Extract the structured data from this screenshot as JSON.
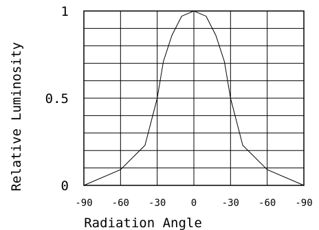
{
  "chart_data": {
    "type": "line",
    "xlabel": "Radiation Angle",
    "ylabel": "Relative Luminosity",
    "xlim": [
      -90,
      90
    ],
    "ylim": [
      0,
      1
    ],
    "grid": true,
    "x_tick_labels": [
      "-90",
      "-60",
      "-30",
      "0",
      "-30",
      "-60",
      "-90"
    ],
    "y_tick_labels": [
      "0",
      "0.5",
      "1"
    ],
    "series": [
      {
        "x": [
          -90,
          -60,
          -40,
          -30,
          -25,
          -18,
          -10,
          0,
          10,
          18,
          25,
          30,
          40,
          60,
          90
        ],
        "y": [
          0,
          0.09,
          0.23,
          0.5,
          0.71,
          0.86,
          0.97,
          1.0,
          0.97,
          0.86,
          0.71,
          0.5,
          0.23,
          0.09,
          0
        ]
      }
    ]
  }
}
